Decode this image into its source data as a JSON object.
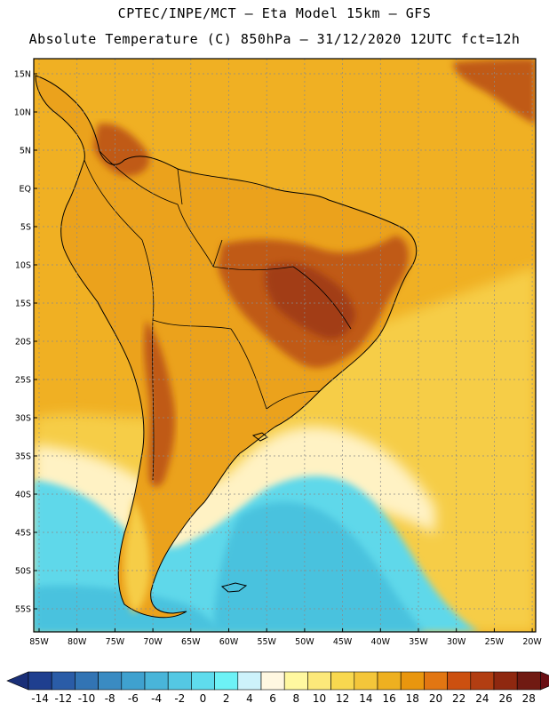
{
  "header": {
    "line1": "CPTEC/INPE/MCT –  Eta Model 15km – GFS",
    "line2": "Absolute Temperature (C) 850hPa – 31/12/2020 12UTC fct=12h"
  },
  "axes": {
    "lat_labels": [
      "15N",
      "10N",
      "5N",
      "EQ",
      "5S",
      "10S",
      "15S",
      "20S",
      "25S",
      "30S",
      "35S",
      "40S",
      "45S",
      "50S",
      "55S"
    ],
    "lon_labels": [
      "85W",
      "80W",
      "75W",
      "70W",
      "65W",
      "60W",
      "55W",
      "50W",
      "45W",
      "40W",
      "35W",
      "30W",
      "25W",
      "20W"
    ]
  },
  "colorbar": {
    "labels": [
      "-14",
      "-12",
      "-10",
      "-8",
      "-6",
      "-4",
      "-2",
      "0",
      "2",
      "4",
      "6",
      "8",
      "10",
      "12",
      "14",
      "16",
      "18",
      "20",
      "22",
      "24",
      "26",
      "28"
    ],
    "colors": [
      "#1f3f8f",
      "#2a5ca7",
      "#3274b4",
      "#3a8bc2",
      "#3fa1cf",
      "#49b5d9",
      "#54c8e3",
      "#5fdced",
      "#6df2f6",
      "#cdf2fb",
      "#fff7e1",
      "#fff8a0",
      "#fce97a",
      "#f8d84f",
      "#f4c63a",
      "#eeb020",
      "#e9960e",
      "#e27612",
      "#cc5010",
      "#b23e12",
      "#8f2810",
      "#701a12"
    ],
    "under_color": "#1a2f78",
    "over_color": "#6a0f14"
  },
  "map": {
    "land_base": "#eba21c",
    "ocean_north": "#f0b023",
    "ocean_south_mid": "#f6cd46",
    "cold_pool": "#5fd8ea",
    "cold_core": "#4ac2de",
    "warm_core": "#c05a18",
    "hot_core": "#a23c14"
  }
}
